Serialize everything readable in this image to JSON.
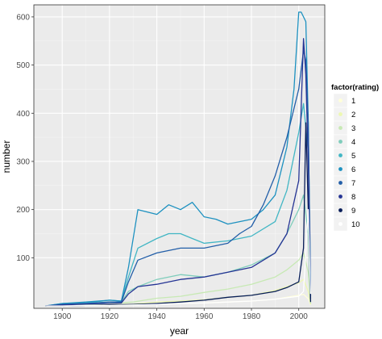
{
  "chart_data": {
    "type": "line",
    "xlabel": "year",
    "ylabel": "number",
    "xlim": [
      1888,
      2011
    ],
    "ylim": [
      -5,
      625
    ],
    "x_ticks": [
      1900,
      1920,
      1940,
      1960,
      1980,
      2000
    ],
    "x_tick_labels": [
      "1900",
      "1920",
      "1940",
      "1960",
      "1980",
      "2000"
    ],
    "y_ticks": [
      100,
      200,
      300,
      400,
      500,
      600
    ],
    "y_tick_labels": [
      "100",
      "200",
      "300",
      "400",
      "500",
      "600"
    ],
    "grid": true,
    "background": "#ebebeb",
    "legend": {
      "title": "factor(rating)",
      "position": "right",
      "entries": [
        "1",
        "2",
        "3",
        "4",
        "5",
        "6",
        "7",
        "8",
        "9",
        "10"
      ]
    },
    "series": [
      {
        "name": "1",
        "color": "#ffffd9",
        "x": [
          1893,
          1900,
          1910,
          1920,
          1930,
          1940,
          1950,
          1960,
          1970,
          1980,
          1990,
          1995,
          2000,
          2002,
          2004,
          2005
        ],
        "y": [
          0,
          0,
          1,
          1,
          2,
          4,
          5,
          6,
          8,
          10,
          14,
          18,
          22,
          24,
          15,
          2
        ]
      },
      {
        "name": "2",
        "color": "#edf8b1",
        "x": [
          1893,
          1900,
          1910,
          1920,
          1930,
          1940,
          1950,
          1960,
          1970,
          1980,
          1990,
          1995,
          2000,
          2002,
          2004,
          2005
        ],
        "y": [
          0,
          1,
          2,
          3,
          4,
          8,
          10,
          13,
          18,
          22,
          32,
          40,
          48,
          55,
          30,
          3
        ]
      },
      {
        "name": "3",
        "color": "#c7e9b4",
        "x": [
          1893,
          1900,
          1910,
          1920,
          1930,
          1940,
          1950,
          1960,
          1970,
          1980,
          1990,
          1995,
          2000,
          2002,
          2004,
          2005
        ],
        "y": [
          0,
          2,
          3,
          5,
          8,
          16,
          20,
          28,
          35,
          45,
          60,
          75,
          95,
          110,
          70,
          5
        ]
      },
      {
        "name": "4",
        "color": "#7fcdbb",
        "x": [
          1893,
          1900,
          1910,
          1920,
          1925,
          1928,
          1932,
          1940,
          1950,
          1960,
          1970,
          1980,
          1990,
          1995,
          2000,
          2002,
          2004,
          2005
        ],
        "y": [
          0,
          3,
          5,
          8,
          8,
          30,
          40,
          55,
          65,
          60,
          70,
          85,
          110,
          150,
          200,
          230,
          150,
          10
        ]
      },
      {
        "name": "5",
        "color": "#41b6c4",
        "x": [
          1893,
          1900,
          1910,
          1920,
          1925,
          1928,
          1932,
          1940,
          1945,
          1950,
          1955,
          1960,
          1970,
          1980,
          1990,
          1995,
          2000,
          2002,
          2004,
          2005
        ],
        "y": [
          0,
          5,
          6,
          12,
          10,
          60,
          120,
          140,
          150,
          150,
          140,
          130,
          135,
          145,
          175,
          240,
          360,
          420,
          320,
          20
        ]
      },
      {
        "name": "6",
        "color": "#1d91c0",
        "x": [
          1893,
          1900,
          1910,
          1920,
          1925,
          1928,
          1932,
          1940,
          1945,
          1950,
          1955,
          1960,
          1965,
          1970,
          1975,
          1980,
          1985,
          1990,
          1995,
          1998,
          2000,
          2001,
          2002,
          2003,
          2004,
          2005
        ],
        "y": [
          0,
          5,
          8,
          12,
          10,
          80,
          200,
          190,
          210,
          200,
          215,
          185,
          180,
          170,
          175,
          180,
          200,
          230,
          330,
          450,
          610,
          610,
          600,
          590,
          380,
          30
        ]
      },
      {
        "name": "7",
        "color": "#225ea8",
        "x": [
          1893,
          1900,
          1910,
          1920,
          1925,
          1928,
          1932,
          1940,
          1950,
          1960,
          1965,
          1970,
          1975,
          1980,
          1985,
          1990,
          1995,
          2000,
          2002,
          2003,
          2004,
          2005
        ],
        "y": [
          0,
          3,
          5,
          8,
          8,
          50,
          95,
          110,
          120,
          120,
          125,
          130,
          150,
          165,
          210,
          270,
          350,
          450,
          530,
          510,
          380,
          20
        ]
      },
      {
        "name": "8",
        "color": "#253494",
        "x": [
          1893,
          1900,
          1910,
          1920,
          1925,
          1928,
          1932,
          1940,
          1950,
          1960,
          1970,
          1980,
          1990,
          1995,
          2000,
          2002,
          2003,
          2004,
          2005
        ],
        "y": [
          0,
          2,
          4,
          5,
          6,
          25,
          40,
          45,
          55,
          60,
          70,
          80,
          110,
          150,
          260,
          555,
          480,
          300,
          15
        ]
      },
      {
        "name": "9",
        "color": "#081d58",
        "x": [
          1893,
          1900,
          1910,
          1920,
          1930,
          1940,
          1950,
          1960,
          1970,
          1980,
          1990,
          1995,
          2000,
          2002,
          2003,
          2004,
          2005
        ],
        "y": [
          0,
          0,
          1,
          2,
          3,
          5,
          8,
          12,
          18,
          22,
          30,
          38,
          50,
          120,
          380,
          200,
          8
        ]
      },
      {
        "name": "10",
        "color": "#ffffff",
        "x": [
          1893,
          1900,
          1910,
          1920,
          1930,
          1940,
          1950,
          1960,
          1970,
          1980,
          1990,
          2000,
          2002,
          2004,
          2005
        ],
        "y": [
          0,
          0,
          1,
          1,
          2,
          3,
          5,
          6,
          8,
          10,
          14,
          20,
          30,
          200,
          25
        ]
      }
    ]
  }
}
